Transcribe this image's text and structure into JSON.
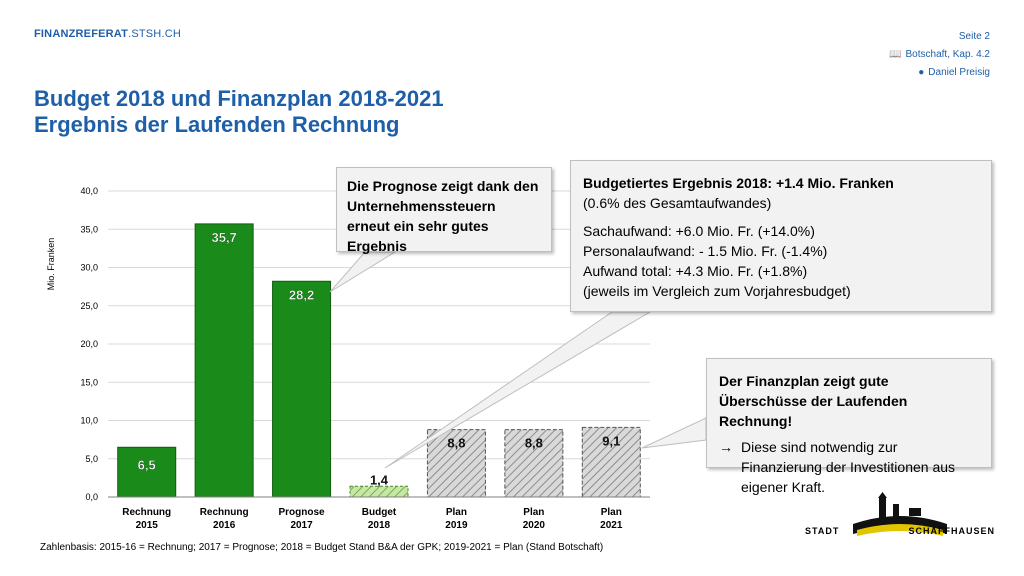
{
  "header": {
    "brand_bold": "FINANZREFERAT",
    "brand_rest": ".STSH.CH",
    "page": "Seite 2",
    "reference": "Botschaft, Kap. 4.2",
    "author": "Daniel Preisig",
    "title_line1": "Budget 2018 und Finanzplan 2018-2021",
    "title_line2": "Ergebnis der Laufenden Rechnung"
  },
  "icons": {
    "book": "book-icon",
    "person": "person-icon"
  },
  "colors": {
    "accent": "#1f5fa8",
    "actual": "#1a8a1a",
    "plan": "#b0b0b0",
    "budget": "#c8e6a8"
  },
  "chart_data": {
    "type": "bar",
    "ylabel": "Mio. Franken",
    "ylim": [
      0,
      40
    ],
    "yticks": [
      "0,0",
      "5,0",
      "10,0",
      "15,0",
      "20,0",
      "25,0",
      "30,0",
      "35,0",
      "40,0"
    ],
    "categories": [
      [
        "Rechnung",
        "2015"
      ],
      [
        "Rechnung",
        "2016"
      ],
      [
        "Prognose",
        "2017"
      ],
      [
        "Budget",
        "2018"
      ],
      [
        "Plan",
        "2019"
      ],
      [
        "Plan",
        "2020"
      ],
      [
        "Plan",
        "2021"
      ]
    ],
    "values": [
      6.5,
      35.7,
      28.2,
      1.4,
      8.8,
      8.8,
      9.1
    ],
    "labels": [
      "6,5",
      "35,7",
      "28,2",
      "1,4",
      "8,8",
      "8,8",
      "9,1"
    ],
    "styles": [
      "actual",
      "actual",
      "actual",
      "budget",
      "plan",
      "plan",
      "plan"
    ],
    "grid": true
  },
  "callouts": {
    "prognose": "Die Prognose zeigt dank den Unternehmenssteuern erneut ein sehr gutes Ergebnis",
    "budget_title": "Budgetiertes Ergebnis 2018: +1.4 Mio. Franken",
    "budget_sub": "(0.6% des Gesamtaufwandes)",
    "budget_lines": [
      "Sachaufwand: +6.0 Mio. Fr. (+14.0%)",
      "Personalaufwand: - 1.5 Mio. Fr. (-1.4%)",
      "Aufwand total: +4.3 Mio. Fr. (+1.8%)",
      "(jeweils im Vergleich zum Vorjahresbudget)"
    ],
    "plan_title": "Der Finanzplan zeigt gute Überschüsse der Laufenden Rechnung!",
    "plan_arrow": "→",
    "plan_text": "Diese sind notwendig zur Finanzierung der Investitionen aus eigener Kraft."
  },
  "footnote": "Zahlenbasis: 2015-16 = Rechnung; 2017 = Prognose; 2018 = Budget Stand B&A der GPK; 2019-2021 = Plan (Stand Botschaft)",
  "logo": {
    "left": "STADT",
    "right": "SCHAFFHAUSEN"
  }
}
